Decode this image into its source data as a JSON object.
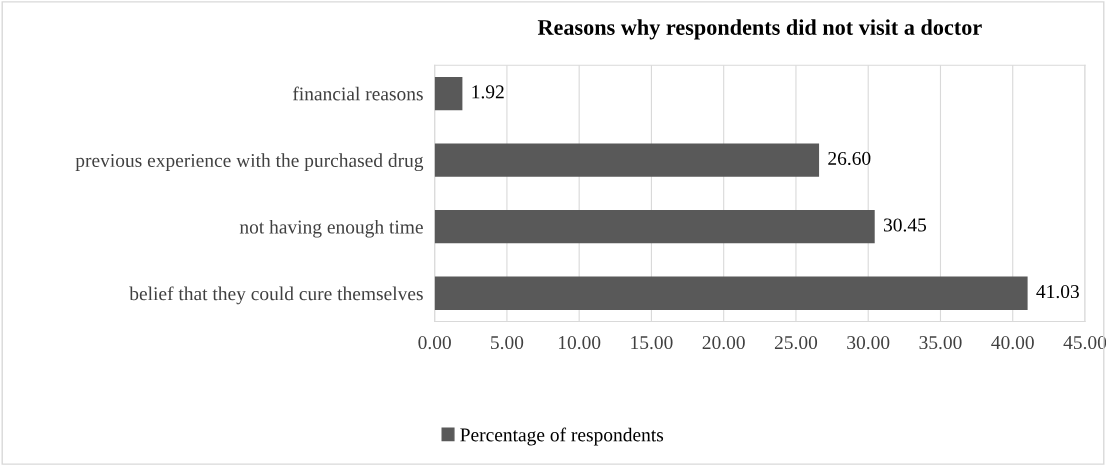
{
  "chart_data": {
    "type": "bar",
    "orientation": "horizontal",
    "title": "Reasons why respondents did not visit a doctor",
    "categories": [
      "financial reasons",
      "previous experience with the purchased drug",
      "not having enough time",
      "belief that they could cure themselves"
    ],
    "series": [
      {
        "name": "Percentage of respondents",
        "color": "#595959",
        "values": [
          1.92,
          26.6,
          30.45,
          41.03
        ]
      }
    ],
    "value_labels": [
      "1.92",
      "26.60",
      "30.45",
      "41.03"
    ],
    "xlim": [
      0,
      45
    ],
    "xticks": [
      {
        "value": 0,
        "label": "0.00"
      },
      {
        "value": 5,
        "label": "5.00"
      },
      {
        "value": 10,
        "label": "10.00"
      },
      {
        "value": 15,
        "label": "15.00"
      },
      {
        "value": 20,
        "label": "20.00"
      },
      {
        "value": 25,
        "label": "25.00"
      },
      {
        "value": 30,
        "label": "30.00"
      },
      {
        "value": 35,
        "label": "35.00"
      },
      {
        "value": 40,
        "label": "40.00"
      },
      {
        "value": 45,
        "label": "45.00"
      }
    ],
    "grid": "x",
    "legend": "bottom"
  }
}
